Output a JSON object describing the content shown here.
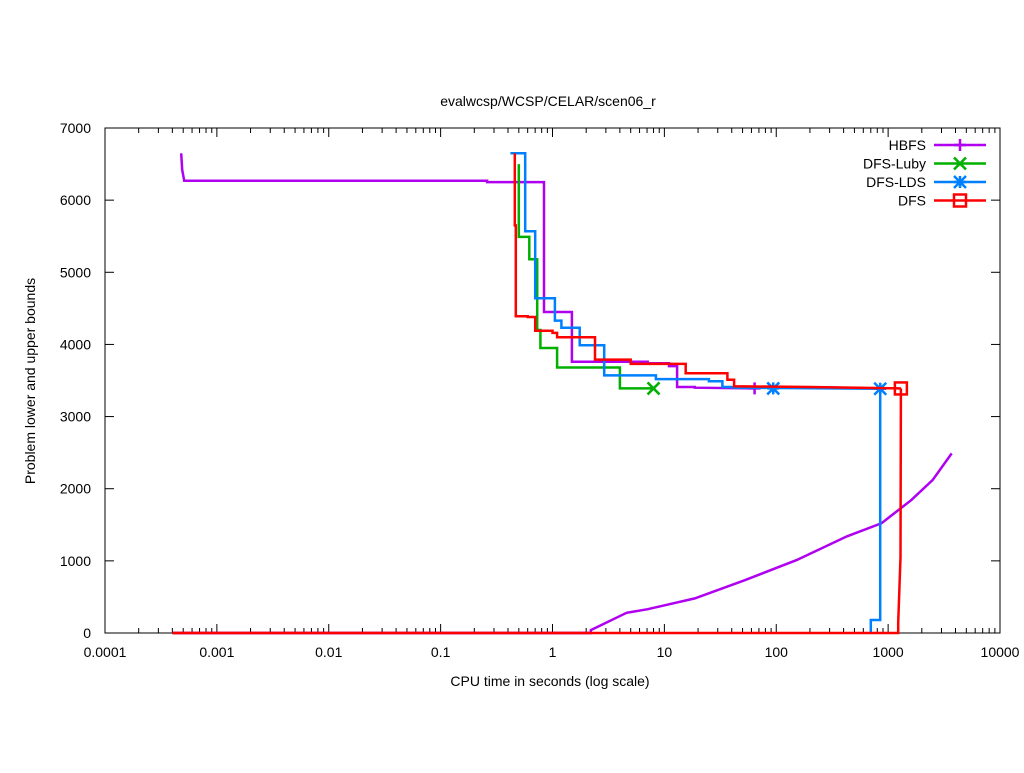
{
  "chart_data": {
    "type": "line",
    "title": "evalwcsp/WCSP/CELAR/scen06_r",
    "xlabel": "CPU time in seconds (log scale)",
    "ylabel": "Problem lower and upper bounds",
    "xscale": "log",
    "xlim": [
      0.0001,
      10000
    ],
    "ylim": [
      0,
      7000
    ],
    "xticks": [
      0.0001,
      0.001,
      0.01,
      0.1,
      1,
      10,
      100,
      1000,
      10000
    ],
    "xtick_labels": [
      "0.0001",
      "0.001",
      "0.01",
      "0.1",
      "1",
      "10",
      "100",
      "1000",
      "10000"
    ],
    "yticks": [
      0,
      1000,
      2000,
      3000,
      4000,
      5000,
      6000,
      7000
    ],
    "ytick_labels": [
      "0",
      "1000",
      "2000",
      "3000",
      "4000",
      "5000",
      "6000",
      "7000"
    ],
    "grid": false,
    "legend_position": "top-right",
    "series": [
      {
        "name": "HBFS",
        "color": "#b000f0",
        "marker": "plus",
        "upper": [
          [
            0.00048,
            6650
          ],
          [
            0.00049,
            6420
          ],
          [
            0.00051,
            6270
          ],
          [
            0.26,
            6270
          ],
          [
            0.26,
            6250
          ],
          [
            0.84,
            6250
          ],
          [
            0.84,
            4450
          ],
          [
            1.49,
            4450
          ],
          [
            1.49,
            3760
          ],
          [
            7.1,
            3760
          ],
          [
            7.1,
            3740
          ],
          [
            11,
            3740
          ],
          [
            11,
            3700
          ],
          [
            13,
            3700
          ],
          [
            13,
            3410
          ],
          [
            18.7,
            3410
          ],
          [
            18.7,
            3400
          ],
          [
            64,
            3390
          ]
        ],
        "lower": [
          [
            0.0004,
            0
          ],
          [
            2.2,
            0
          ],
          [
            2.2,
            40
          ],
          [
            4.6,
            280
          ],
          [
            7.1,
            330
          ],
          [
            18.7,
            480
          ],
          [
            52,
            730
          ],
          [
            152,
            1010
          ],
          [
            430,
            1340
          ],
          [
            870,
            1520
          ],
          [
            1600,
            1840
          ],
          [
            2500,
            2120
          ],
          [
            3700,
            2490
          ]
        ],
        "marker_at": [
          [
            64,
            3390
          ]
        ]
      },
      {
        "name": "DFS-Luby",
        "color": "#00b000",
        "marker": "x",
        "upper": [
          [
            0.5,
            6500
          ],
          [
            0.5,
            5490
          ],
          [
            0.62,
            5490
          ],
          [
            0.62,
            5180
          ],
          [
            0.73,
            5180
          ],
          [
            0.73,
            4200
          ],
          [
            0.78,
            4200
          ],
          [
            0.78,
            3950
          ],
          [
            1.1,
            3950
          ],
          [
            1.1,
            3680
          ],
          [
            4,
            3680
          ],
          [
            4,
            3390
          ],
          [
            8,
            3390
          ]
        ],
        "lower": [],
        "marker_at": [
          [
            8,
            3390
          ]
        ]
      },
      {
        "name": "DFS-LDS",
        "color": "#0080ff",
        "marker": "star",
        "upper": [
          [
            0.42,
            6650
          ],
          [
            0.57,
            6650
          ],
          [
            0.57,
            5570
          ],
          [
            0.7,
            5570
          ],
          [
            0.7,
            4640
          ],
          [
            1.05,
            4640
          ],
          [
            1.05,
            4330
          ],
          [
            1.2,
            4330
          ],
          [
            1.2,
            4230
          ],
          [
            1.75,
            4230
          ],
          [
            1.75,
            3990
          ],
          [
            2.9,
            3990
          ],
          [
            2.9,
            3570
          ],
          [
            8.4,
            3570
          ],
          [
            8.4,
            3520
          ],
          [
            25,
            3520
          ],
          [
            25,
            3490
          ],
          [
            33,
            3490
          ],
          [
            33,
            3410
          ],
          [
            42,
            3410
          ],
          [
            42,
            3400
          ],
          [
            850,
            3385
          ]
        ],
        "lower": [
          [
            850,
            3385
          ],
          [
            850,
            180
          ],
          [
            700,
            180
          ],
          [
            700,
            0
          ]
        ],
        "marker_at": [
          [
            94,
            3390
          ],
          [
            850,
            3385
          ]
        ]
      },
      {
        "name": "DFS",
        "color": "#ff0000",
        "marker": "square",
        "upper": [
          [
            0.46,
            6650
          ],
          [
            0.46,
            5650
          ],
          [
            0.47,
            5650
          ],
          [
            0.47,
            4390
          ],
          [
            0.6,
            4390
          ],
          [
            0.6,
            4380
          ],
          [
            0.7,
            4380
          ],
          [
            0.7,
            4190
          ],
          [
            1.0,
            4190
          ],
          [
            1.0,
            4160
          ],
          [
            1.1,
            4160
          ],
          [
            1.1,
            4100
          ],
          [
            2.4,
            4100
          ],
          [
            2.4,
            3790
          ],
          [
            5,
            3790
          ],
          [
            5,
            3730
          ],
          [
            15.5,
            3730
          ],
          [
            15.5,
            3600
          ],
          [
            36.6,
            3600
          ],
          [
            36.6,
            3510
          ],
          [
            42,
            3510
          ],
          [
            42,
            3420
          ],
          [
            200,
            3410
          ],
          [
            1300,
            3390
          ]
        ],
        "lower": [
          [
            0.0004,
            0
          ],
          [
            1230,
            0
          ],
          [
            1230,
            140
          ],
          [
            1290,
            1050
          ],
          [
            1300,
            3390
          ]
        ],
        "marker_at": [
          [
            1300,
            3390
          ]
        ]
      }
    ]
  }
}
